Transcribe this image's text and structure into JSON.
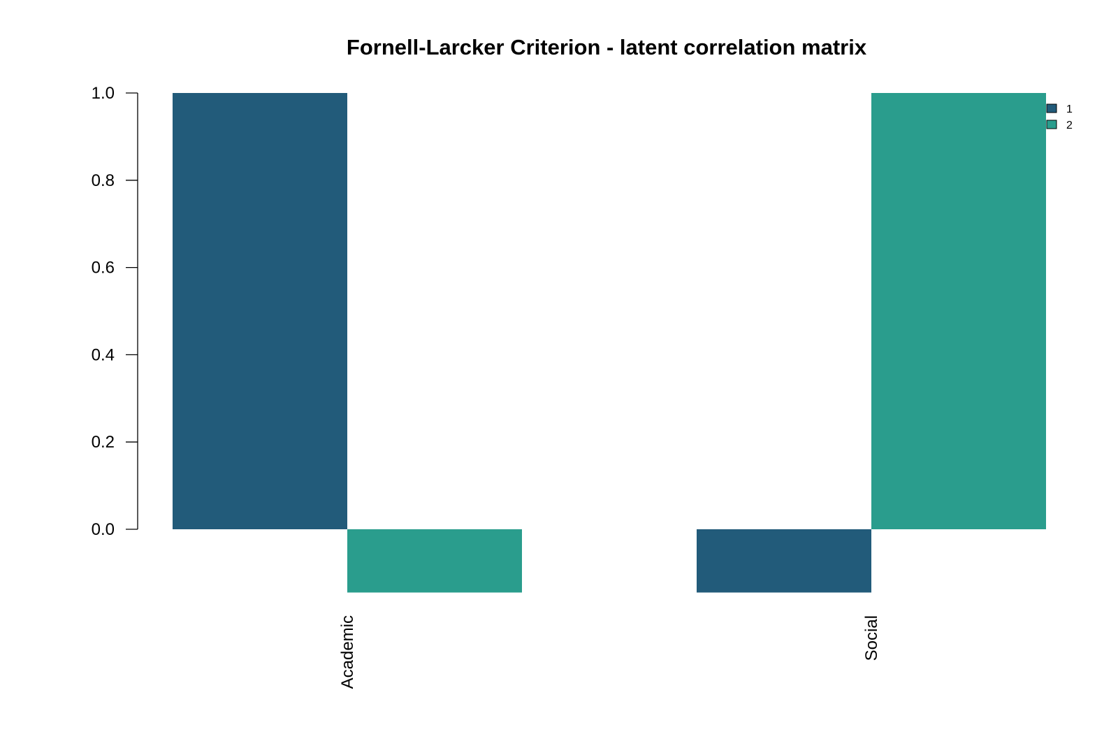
{
  "chart_data": {
    "type": "bar",
    "title": "Fornell-Larcker Criterion - latent correlation matrix",
    "xlabel": "",
    "ylabel": "",
    "categories": [
      "Academic",
      "Social"
    ],
    "series": [
      {
        "name": "1",
        "color": "#225b7a",
        "values": [
          1.0,
          -0.145
        ]
      },
      {
        "name": "2",
        "color": "#2a9d8d",
        "values": [
          -0.145,
          1.0
        ]
      }
    ],
    "ylim": [
      -0.145,
      1.0
    ],
    "yticks": [
      0.0,
      0.2,
      0.4,
      0.6,
      0.8,
      1.0
    ],
    "ytick_labels": [
      "0.0",
      "0.2",
      "0.4",
      "0.6",
      "0.8",
      "1.0"
    ],
    "grid": false,
    "legend_position": "top-right"
  }
}
